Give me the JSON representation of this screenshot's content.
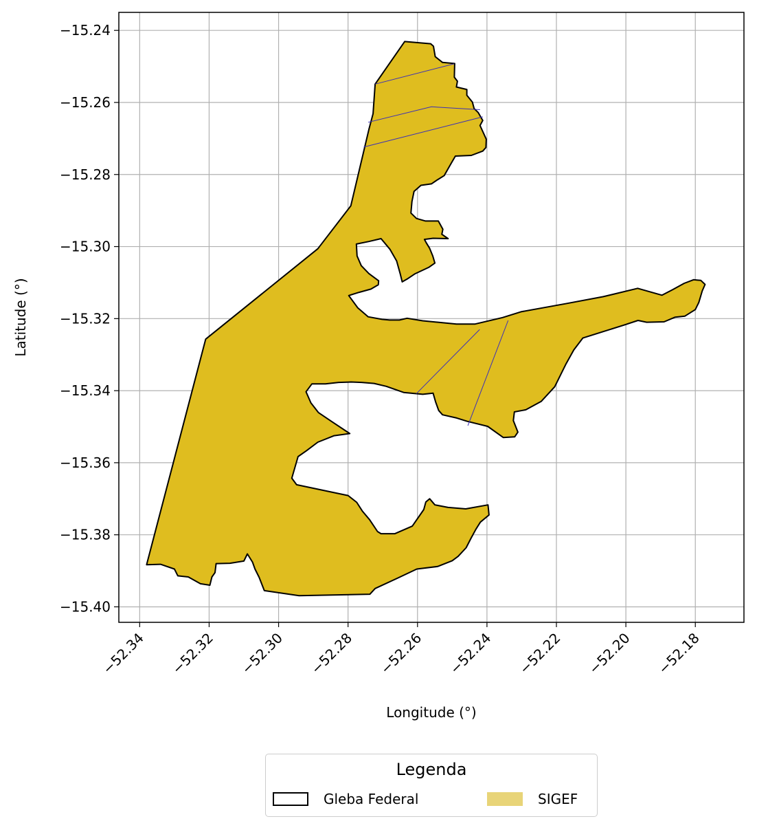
{
  "chart_data": {
    "type": "map",
    "xlabel": "Longitude (°)",
    "ylabel": "Latitude (°)",
    "xlim": [
      -52.346,
      -52.166
    ],
    "ylim": [
      -15.4043,
      -15.235
    ],
    "x_ticks": [
      -52.34,
      -52.32,
      -52.3,
      -52.28,
      -52.26,
      -52.24,
      -52.22,
      -52.2,
      -52.18
    ],
    "x_tick_labels": [
      "−52.34",
      "−52.32",
      "−52.30",
      "−52.28",
      "−52.26",
      "−52.24",
      "−52.22",
      "−52.20",
      "−52.18"
    ],
    "y_ticks": [
      -15.24,
      -15.26,
      -15.28,
      -15.3,
      -15.32,
      -15.34,
      -15.36,
      -15.38,
      -15.4
    ],
    "y_tick_labels": [
      "−15.24",
      "−15.26",
      "−15.28",
      "−15.30",
      "−15.32",
      "−15.34",
      "−15.36",
      "−15.38",
      "−15.40"
    ],
    "grid": true,
    "legend": {
      "title": "Legenda",
      "placement": "below-center",
      "entries": [
        {
          "label": "Gleba Federal",
          "kind": "outline",
          "edge_color": "#000000",
          "face_color": "#ffffff"
        },
        {
          "label": "SIGEF",
          "kind": "fill",
          "face_color": "#e8d478"
        }
      ]
    },
    "colors": {
      "fill": "#dfbd1f",
      "outline": "#000000",
      "parcel_lines": "#3a2fb8",
      "grid": "#b0b0b0"
    },
    "gleba_outline": [
      [
        -52.2637,
        -15.2431
      ],
      [
        -52.2562,
        -15.2437
      ],
      [
        -52.2554,
        -15.2444
      ],
      [
        -52.2549,
        -15.2473
      ],
      [
        -52.2528,
        -15.2489
      ],
      [
        -52.2493,
        -15.2492
      ],
      [
        -52.2494,
        -15.253
      ],
      [
        -52.2485,
        -15.2541
      ],
      [
        -52.2488,
        -15.2557
      ],
      [
        -52.2458,
        -15.2564
      ],
      [
        -52.2458,
        -15.258
      ],
      [
        -52.2442,
        -15.2599
      ],
      [
        -52.2437,
        -15.2617
      ],
      [
        -52.2425,
        -15.2628
      ],
      [
        -52.2412,
        -15.265
      ],
      [
        -52.242,
        -15.2664
      ],
      [
        -52.2402,
        -15.2702
      ],
      [
        -52.2403,
        -15.2725
      ],
      [
        -52.2412,
        -15.2735
      ],
      [
        -52.2445,
        -15.2747
      ],
      [
        -52.2491,
        -15.2749
      ],
      [
        -52.2506,
        -15.2774
      ],
      [
        -52.2523,
        -15.2803
      ],
      [
        -52.2543,
        -15.2815
      ],
      [
        -52.256,
        -15.2826
      ],
      [
        -52.259,
        -15.283
      ],
      [
        -52.261,
        -15.2847
      ],
      [
        -52.2616,
        -15.2875
      ],
      [
        -52.2619,
        -15.2907
      ],
      [
        -52.2603,
        -15.2922
      ],
      [
        -52.2577,
        -15.2929
      ],
      [
        -52.254,
        -15.2929
      ],
      [
        -52.2527,
        -15.2952
      ],
      [
        -52.253,
        -15.2966
      ],
      [
        -52.2512,
        -15.2978
      ],
      [
        -52.2555,
        -15.2977
      ],
      [
        -52.258,
        -15.298
      ],
      [
        -52.2575,
        -15.2989
      ],
      [
        -52.2565,
        -15.3005
      ],
      [
        -52.2556,
        -15.3026
      ],
      [
        -52.255,
        -15.3046
      ],
      [
        -52.2568,
        -15.3058
      ],
      [
        -52.2608,
        -15.3076
      ],
      [
        -52.2628,
        -15.3089
      ],
      [
        -52.2644,
        -15.3098
      ],
      [
        -52.265,
        -15.3075
      ],
      [
        -52.266,
        -15.304
      ],
      [
        -52.2679,
        -15.3008
      ],
      [
        -52.2705,
        -15.2978
      ],
      [
        -52.274,
        -15.2986
      ],
      [
        -52.2776,
        -15.2993
      ],
      [
        -52.2774,
        -15.3026
      ],
      [
        -52.2762,
        -15.3053
      ],
      [
        -52.274,
        -15.3075
      ],
      [
        -52.2712,
        -15.3095
      ],
      [
        -52.2713,
        -15.3106
      ],
      [
        -52.2734,
        -15.3118
      ],
      [
        -52.2768,
        -15.3127
      ],
      [
        -52.2798,
        -15.3136
      ],
      [
        -52.2772,
        -15.317
      ],
      [
        -52.2742,
        -15.3195
      ],
      [
        -52.2702,
        -15.3202
      ],
      [
        -52.268,
        -15.3204
      ],
      [
        -52.2652,
        -15.3204
      ],
      [
        -52.263,
        -15.3199
      ],
      [
        -52.2585,
        -15.3206
      ],
      [
        -52.2541,
        -15.321
      ],
      [
        -52.2488,
        -15.3215
      ],
      [
        -52.2434,
        -15.3215
      ],
      [
        -52.2355,
        -15.3197
      ],
      [
        -52.2302,
        -15.3181
      ],
      [
        -52.217,
        -15.3158
      ],
      [
        -52.2065,
        -15.3139
      ],
      [
        -52.1966,
        -15.3116
      ],
      [
        -52.1896,
        -15.3135
      ],
      [
        -52.1866,
        -15.312
      ],
      [
        -52.1832,
        -15.3102
      ],
      [
        -52.1805,
        -15.3092
      ],
      [
        -52.1784,
        -15.3094
      ],
      [
        -52.1772,
        -15.3105
      ],
      [
        -52.178,
        -15.3123
      ],
      [
        -52.179,
        -15.3155
      ],
      [
        -52.18,
        -15.3175
      ],
      [
        -52.183,
        -15.3193
      ],
      [
        -52.1858,
        -15.3196
      ],
      [
        -52.189,
        -15.3209
      ],
      [
        -52.194,
        -15.321
      ],
      [
        -52.1965,
        -15.3205
      ],
      [
        -52.2006,
        -15.3218
      ],
      [
        -52.2065,
        -15.3236
      ],
      [
        -52.2124,
        -15.3254
      ],
      [
        -52.215,
        -15.3287
      ],
      [
        -52.2173,
        -15.3327
      ],
      [
        -52.2205,
        -15.3389
      ],
      [
        -52.2244,
        -15.343
      ],
      [
        -52.2288,
        -15.3453
      ],
      [
        -52.2321,
        -15.3459
      ],
      [
        -52.2324,
        -15.3483
      ],
      [
        -52.2311,
        -15.3515
      ],
      [
        -52.232,
        -15.3528
      ],
      [
        -52.2353,
        -15.353
      ],
      [
        -52.2398,
        -15.3499
      ],
      [
        -52.2457,
        -15.3485
      ],
      [
        -52.2487,
        -15.3476
      ],
      [
        -52.2528,
        -15.3467
      ],
      [
        -52.2539,
        -15.3455
      ],
      [
        -52.2548,
        -15.3431
      ],
      [
        -52.2555,
        -15.3407
      ],
      [
        -52.2585,
        -15.341
      ],
      [
        -52.264,
        -15.3405
      ],
      [
        -52.269,
        -15.3388
      ],
      [
        -52.2725,
        -15.338
      ],
      [
        -52.2761,
        -15.3377
      ],
      [
        -52.2791,
        -15.3376
      ],
      [
        -52.2827,
        -15.3377
      ],
      [
        -52.2865,
        -15.3381
      ],
      [
        -52.2904,
        -15.3381
      ],
      [
        -52.2921,
        -15.3403
      ],
      [
        -52.2907,
        -15.3434
      ],
      [
        -52.2885,
        -15.3461
      ],
      [
        -52.2845,
        -15.3487
      ],
      [
        -52.2795,
        -15.3519
      ],
      [
        -52.284,
        -15.3525
      ],
      [
        -52.2887,
        -15.3543
      ],
      [
        -52.292,
        -15.3567
      ],
      [
        -52.2944,
        -15.3583
      ],
      [
        -52.2962,
        -15.3643
      ],
      [
        -52.2948,
        -15.3661
      ],
      [
        -52.284,
        -15.3683
      ],
      [
        -52.28,
        -15.3691
      ],
      [
        -52.2775,
        -15.371
      ],
      [
        -52.2759,
        -15.3734
      ],
      [
        -52.2738,
        -15.3758
      ],
      [
        -52.2715,
        -15.3791
      ],
      [
        -52.2705,
        -15.3797
      ],
      [
        -52.2665,
        -15.3797
      ],
      [
        -52.2615,
        -15.3776
      ],
      [
        -52.2582,
        -15.373
      ],
      [
        -52.2576,
        -15.3709
      ],
      [
        -52.2565,
        -15.37
      ],
      [
        -52.255,
        -15.3717
      ],
      [
        -52.2512,
        -15.3724
      ],
      [
        -52.2461,
        -15.3728
      ],
      [
        -52.2397,
        -15.3717
      ],
      [
        -52.2394,
        -15.3745
      ],
      [
        -52.2419,
        -15.3765
      ],
      [
        -52.2432,
        -15.3785
      ],
      [
        -52.2446,
        -15.381
      ],
      [
        -52.246,
        -15.3836
      ],
      [
        -52.2483,
        -15.386
      ],
      [
        -52.25,
        -15.3872
      ],
      [
        -52.2542,
        -15.3888
      ],
      [
        -52.2602,
        -15.3895
      ],
      [
        -52.2657,
        -15.392
      ],
      [
        -52.2722,
        -15.3949
      ],
      [
        -52.2737,
        -15.3965
      ],
      [
        -52.2941,
        -15.3969
      ],
      [
        -52.3041,
        -15.3955
      ],
      [
        -52.3056,
        -15.3918
      ],
      [
        -52.3068,
        -15.3895
      ],
      [
        -52.3075,
        -15.3876
      ],
      [
        -52.309,
        -15.3853
      ],
      [
        -52.31,
        -15.3873
      ],
      [
        -52.314,
        -15.3879
      ],
      [
        -52.318,
        -15.388
      ],
      [
        -52.3183,
        -15.3905
      ],
      [
        -52.3192,
        -15.3917
      ],
      [
        -52.3198,
        -15.394
      ],
      [
        -52.3225,
        -15.3936
      ],
      [
        -52.326,
        -15.3917
      ],
      [
        -52.329,
        -15.3914
      ],
      [
        -52.33,
        -15.3895
      ],
      [
        -52.334,
        -15.3882
      ],
      [
        -52.338,
        -15.3883
      ],
      [
        -52.321,
        -15.3257
      ],
      [
        -52.2887,
        -15.3006
      ],
      [
        -52.2792,
        -15.2887
      ],
      [
        -52.274,
        -15.2675
      ],
      [
        -52.2728,
        -15.2631
      ],
      [
        -52.2722,
        -15.2549
      ],
      [
        -52.2637,
        -15.2431
      ]
    ],
    "parcel_lines": [
      [
        [
          -52.2722,
          -15.2549
        ],
        [
          -52.2495,
          -15.2493
        ]
      ],
      [
        [
          -52.2742,
          -15.2655
        ],
        [
          -52.256,
          -15.2612
        ],
        [
          -52.242,
          -15.262
        ]
      ],
      [
        [
          -52.2755,
          -15.2724
        ],
        [
          -52.2412,
          -15.264
        ]
      ],
      [
        [
          -52.2421,
          -15.323
        ],
        [
          -52.2603,
          -15.3408
        ]
      ],
      [
        [
          -52.2339,
          -15.3205
        ],
        [
          -52.2455,
          -15.3497
        ]
      ]
    ]
  }
}
